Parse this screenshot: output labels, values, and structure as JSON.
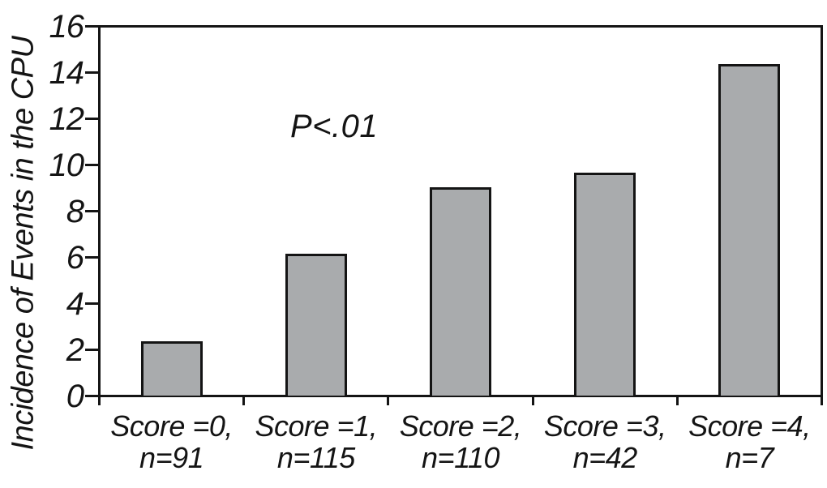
{
  "chart_data": {
    "type": "bar",
    "title": "",
    "ylabel": "Incidence of Events in the CPU",
    "xlabel": "",
    "annotation": "P<.01",
    "categories": [
      {
        "line1": "Score =0,",
        "line2": "n=91"
      },
      {
        "line1": "Score =1,",
        "line2": "n=115"
      },
      {
        "line1": "Score =2,",
        "line2": "n=110"
      },
      {
        "line1": "Score =3,",
        "line2": "n=42"
      },
      {
        "line1": "Score =4,",
        "line2": "n=7"
      }
    ],
    "values": [
      2.3,
      6.1,
      9.0,
      9.6,
      14.3
    ],
    "y_ticks": [
      0,
      2,
      4,
      6,
      8,
      10,
      12,
      14,
      16
    ],
    "ylim": [
      0,
      16
    ],
    "grid": false,
    "legend_position": "none",
    "bar_fill": "#a9abad",
    "ink": "#141414",
    "background": "#ffffff"
  }
}
